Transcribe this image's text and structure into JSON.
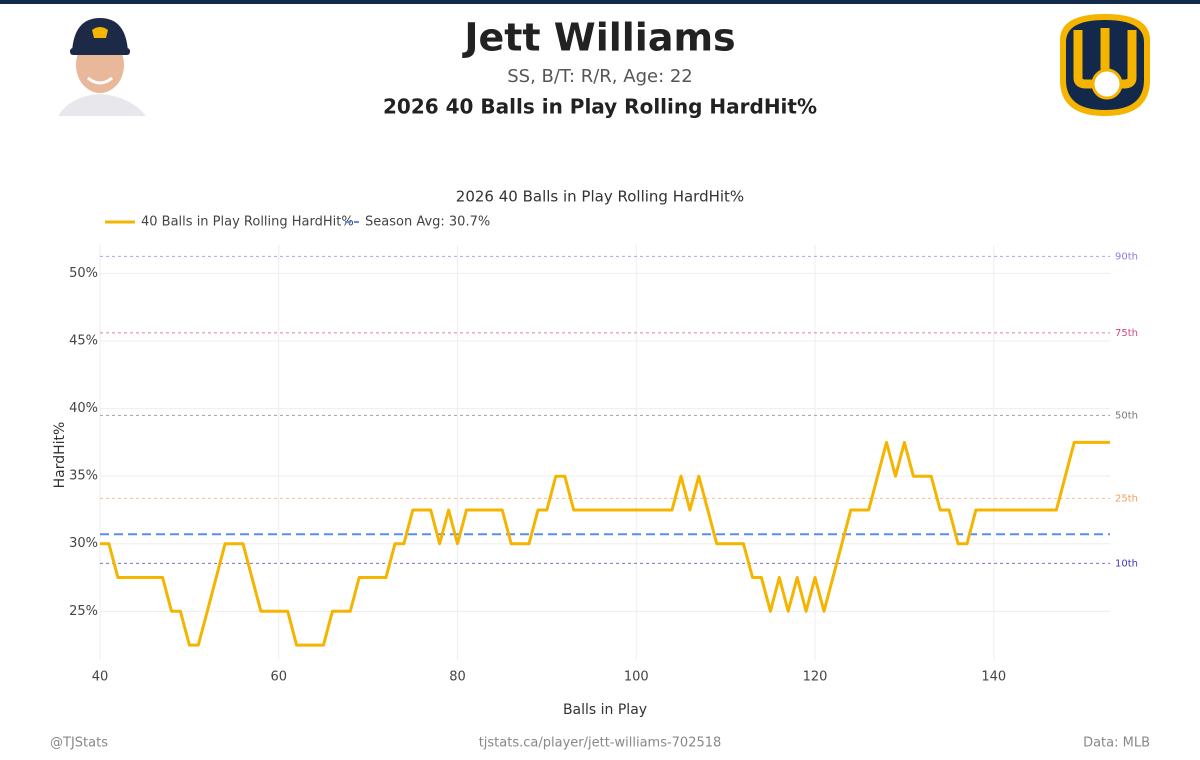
{
  "header": {
    "title": "Jett Williams",
    "subtitle": "SS, B/T: R/R, Age: 22",
    "heading": "2026 40 Balls in Play Rolling HardHit%"
  },
  "chart_data": {
    "type": "line",
    "title": "2026 40 Balls in Play Rolling HardHit%",
    "x_label": "Balls in Play",
    "y_label": "HardHit%",
    "x": [
      40,
      41,
      42,
      43,
      44,
      45,
      46,
      47,
      48,
      49,
      50,
      51,
      52,
      53,
      54,
      55,
      56,
      57,
      58,
      59,
      60,
      61,
      62,
      63,
      64,
      65,
      66,
      67,
      68,
      69,
      70,
      71,
      72,
      73,
      74,
      75,
      76,
      77,
      78,
      79,
      80,
      81,
      82,
      83,
      84,
      85,
      86,
      87,
      88,
      89,
      90,
      91,
      92,
      93,
      94,
      95,
      96,
      97,
      98,
      99,
      100,
      101,
      102,
      103,
      104,
      105,
      106,
      107,
      108,
      109,
      110,
      111,
      112,
      113,
      114,
      115,
      116,
      117,
      118,
      119,
      120,
      121,
      122,
      123,
      124,
      125,
      126,
      127,
      128,
      129,
      130,
      131,
      132,
      133,
      134,
      135,
      136,
      137,
      138,
      139,
      140,
      141,
      142,
      143,
      144,
      145,
      146,
      147,
      148,
      149,
      150,
      151,
      152,
      153
    ],
    "series": [
      {
        "name": "40 Balls in Play Rolling HardHit%",
        "color": "#f5b400",
        "values": [
          30,
          30,
          27.5,
          27.5,
          27.5,
          27.5,
          27.5,
          27.5,
          25,
          25,
          22.5,
          22.5,
          25,
          27.5,
          30,
          30,
          30,
          27.5,
          25,
          25,
          25,
          25,
          22.5,
          22.5,
          22.5,
          22.5,
          25,
          25,
          25,
          27.5,
          27.5,
          27.5,
          27.5,
          30,
          30,
          32.5,
          32.5,
          32.5,
          30,
          32.5,
          30,
          32.5,
          32.5,
          32.5,
          32.5,
          32.5,
          30,
          30,
          30,
          32.5,
          32.5,
          35,
          35,
          32.5,
          32.5,
          32.5,
          32.5,
          32.5,
          32.5,
          32.5,
          32.5,
          32.5,
          32.5,
          32.5,
          32.5,
          35,
          32.5,
          35,
          32.5,
          30,
          30,
          30,
          30,
          27.5,
          27.5,
          25,
          27.5,
          25,
          27.5,
          25,
          27.5,
          25,
          27.5,
          30,
          32.5,
          32.5,
          32.5,
          35,
          37.5,
          35,
          37.5,
          35,
          35,
          35,
          32.5,
          32.5,
          30,
          30,
          32.5,
          32.5,
          32.5,
          32.5,
          32.5,
          32.5,
          32.5,
          32.5,
          32.5,
          32.5,
          35,
          37.5,
          37.5,
          37.5,
          37.5,
          37.5
        ]
      }
    ],
    "reference_lines": [
      {
        "name": "Season Avg: 30.7%",
        "value": 30.7,
        "color": "#5b8def"
      }
    ],
    "percentiles": [
      {
        "label": "90th",
        "value": 51.26,
        "color": "#8a7fe0"
      },
      {
        "label": "75th",
        "value": 45.6,
        "color": "#d6457f"
      },
      {
        "label": "50th",
        "value": 39.5,
        "color": "#777777"
      },
      {
        "label": "25th",
        "value": 33.36,
        "color": "#f0a060"
      },
      {
        "label": "10th",
        "value": 28.55,
        "color": "#3a3ab8"
      }
    ],
    "xlim": [
      40,
      153
    ],
    "ylim": [
      21.4,
      52.1
    ],
    "xticks": [
      40,
      60,
      80,
      100,
      120,
      140
    ],
    "yticks": [
      {
        "value": 25,
        "label": "25%"
      },
      {
        "value": 30,
        "label": "30%"
      },
      {
        "value": 35,
        "label": "35%"
      },
      {
        "value": 40,
        "label": "40%"
      },
      {
        "value": 45,
        "label": "45%"
      },
      {
        "value": 50,
        "label": "50%"
      }
    ],
    "grid": true,
    "legend": "top-left"
  },
  "footer": {
    "left": "@TJStats",
    "center": "tjstats.ca/player/jett-williams-702518",
    "right": "Data: MLB"
  }
}
